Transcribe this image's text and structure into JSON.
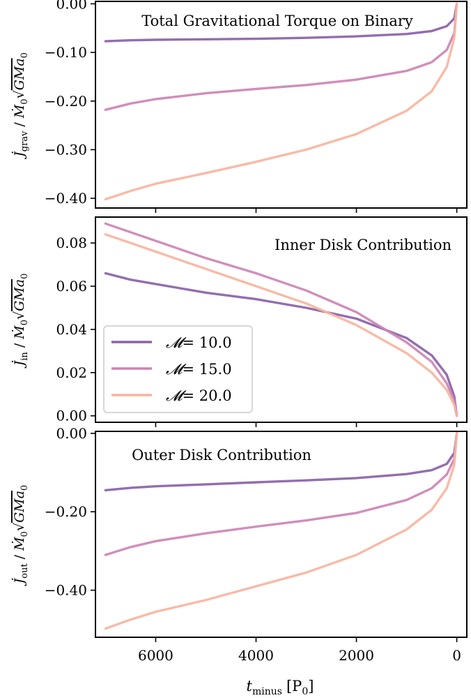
{
  "chart_data": {
    "shared_x": {
      "label": "t_minus [P_0]",
      "label_main": "t",
      "label_sub": "minus",
      "label_unit": "[P",
      "label_unit_sub": "0",
      "label_close": "]",
      "lim": [
        7200,
        -200
      ],
      "ticks": [
        6000,
        4000,
        2000,
        0
      ],
      "tick_labels": [
        "6000",
        "4000",
        "2000",
        "0"
      ],
      "inverted": true
    },
    "legend": {
      "placement": "lower-left of middle panel",
      "entries": [
        {
          "symbol": "𝓜",
          "text": "= 10.0",
          "color": "#8a62a8"
        },
        {
          "symbol": "𝓜",
          "text": "= 15.0",
          "color": "#cd84b4"
        },
        {
          "symbol": "𝓜",
          "text": "= 20.0",
          "color": "#f9b49e"
        }
      ]
    },
    "panels": [
      {
        "type": "line",
        "title": "Total Gravitational Torque on Binary",
        "ylabel": "J̇_grav / Ṁ_0 √(GMa_0)",
        "ylabel_sub": "grav",
        "ylim": [
          -0.42,
          0.005
        ],
        "yticks": [
          0.0,
          -0.1,
          -0.2,
          -0.3,
          -0.4
        ],
        "ytick_labels": [
          "0.00",
          "−0.10",
          "−0.20",
          "−0.30",
          "−0.40"
        ],
        "series": [
          {
            "name": "M=10.0",
            "color": "#8a62a8",
            "x": [
              7000,
              6500,
              6000,
              5000,
              4000,
              3000,
              2000,
              1000,
              500,
              200,
              50,
              0
            ],
            "y": [
              -0.077,
              -0.075,
              -0.074,
              -0.073,
              -0.072,
              -0.07,
              -0.067,
              -0.062,
              -0.056,
              -0.046,
              -0.03,
              0.0
            ]
          },
          {
            "name": "M=15.0",
            "color": "#cd84b4",
            "x": [
              7000,
              6500,
              6000,
              5000,
              4000,
              3000,
              2000,
              1000,
              500,
              200,
              50,
              0
            ],
            "y": [
              -0.218,
              -0.205,
              -0.196,
              -0.184,
              -0.175,
              -0.167,
              -0.156,
              -0.138,
              -0.12,
              -0.095,
              -0.06,
              0.0
            ]
          },
          {
            "name": "M=20.0",
            "color": "#f9b49e",
            "x": [
              7000,
              6500,
              6000,
              5000,
              4000,
              3000,
              2000,
              1000,
              500,
              200,
              50,
              0
            ],
            "y": [
              -0.402,
              -0.385,
              -0.37,
              -0.348,
              -0.325,
              -0.3,
              -0.268,
              -0.22,
              -0.18,
              -0.13,
              -0.07,
              0.0
            ]
          }
        ]
      },
      {
        "type": "line",
        "title": "Inner Disk Contribution",
        "ylabel": "J̇_in / Ṁ_0 √(GMa_0)",
        "ylabel_sub": "in",
        "ylim": [
          -0.003,
          0.092
        ],
        "yticks": [
          0.0,
          0.02,
          0.04,
          0.06,
          0.08
        ],
        "ytick_labels": [
          "0.00",
          "0.02",
          "0.04",
          "0.06",
          "0.08"
        ],
        "series": [
          {
            "name": "M=10.0",
            "color": "#8a62a8",
            "x": [
              7000,
              6500,
              6000,
              5000,
              4000,
              3000,
              2000,
              1000,
              500,
              200,
              50,
              0
            ],
            "y": [
              0.066,
              0.063,
              0.061,
              0.057,
              0.054,
              0.05,
              0.045,
              0.036,
              0.028,
              0.019,
              0.009,
              0.0
            ]
          },
          {
            "name": "M=15.0",
            "color": "#cd84b4",
            "x": [
              7000,
              6500,
              6000,
              5000,
              4000,
              3000,
              2000,
              1000,
              500,
              200,
              50,
              0
            ],
            "y": [
              0.089,
              0.085,
              0.081,
              0.073,
              0.066,
              0.058,
              0.048,
              0.034,
              0.025,
              0.015,
              0.007,
              0.0
            ]
          },
          {
            "name": "M=20.0",
            "color": "#f9b49e",
            "x": [
              7000,
              6500,
              6000,
              5000,
              4000,
              3000,
              2000,
              1000,
              500,
              200,
              50,
              0
            ],
            "y": [
              0.084,
              0.08,
              0.076,
              0.068,
              0.06,
              0.052,
              0.042,
              0.029,
              0.02,
              0.012,
              0.005,
              0.0
            ]
          }
        ]
      },
      {
        "type": "line",
        "title": "Outer Disk Contribution",
        "ylabel": "J̇_out / Ṁ_0 √(GMa_0)",
        "ylabel_sub": "out",
        "ylim": [
          -0.52,
          0.005
        ],
        "yticks": [
          0.0,
          -0.2,
          -0.4
        ],
        "ytick_labels": [
          "0.00",
          "−0.20",
          "−0.40"
        ],
        "series": [
          {
            "name": "M=10.0",
            "color": "#8a62a8",
            "x": [
              7000,
              6500,
              6000,
              5000,
              4000,
              3000,
              2000,
              1000,
              500,
              200,
              50,
              0
            ],
            "y": [
              -0.145,
              -0.139,
              -0.135,
              -0.13,
              -0.125,
              -0.12,
              -0.114,
              -0.104,
              -0.094,
              -0.078,
              -0.05,
              0.0
            ]
          },
          {
            "name": "M=15.0",
            "color": "#cd84b4",
            "x": [
              7000,
              6500,
              6000,
              5000,
              4000,
              3000,
              2000,
              1000,
              500,
              200,
              50,
              0
            ],
            "y": [
              -0.31,
              -0.29,
              -0.275,
              -0.255,
              -0.238,
              -0.222,
              -0.203,
              -0.17,
              -0.14,
              -0.105,
              -0.065,
              0.0
            ]
          },
          {
            "name": "M=20.0",
            "color": "#f9b49e",
            "x": [
              7000,
              6500,
              6000,
              5000,
              4000,
              3000,
              2000,
              1000,
              500,
              200,
              50,
              0
            ],
            "y": [
              -0.498,
              -0.475,
              -0.455,
              -0.425,
              -0.39,
              -0.355,
              -0.31,
              -0.245,
              -0.195,
              -0.14,
              -0.08,
              0.0
            ]
          }
        ]
      }
    ]
  }
}
